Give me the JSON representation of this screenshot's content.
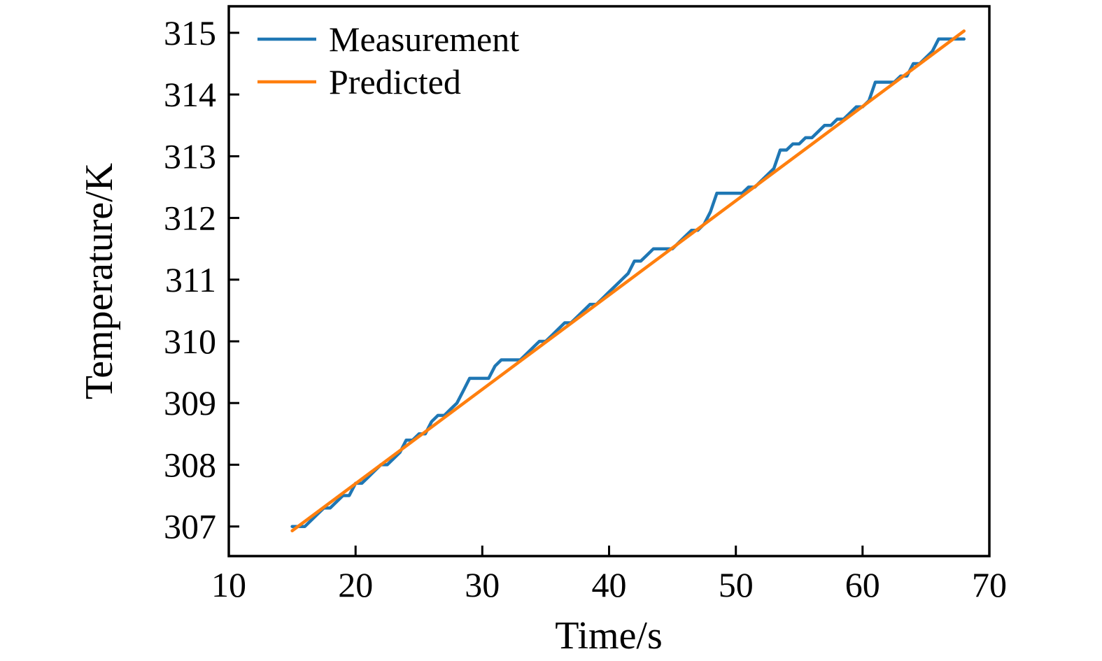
{
  "figure": {
    "background": "#ffffff",
    "axis_color": "#000000",
    "text_color": "#000000"
  },
  "chart_data": {
    "type": "line",
    "title": "",
    "xlabel": "Time/s",
    "ylabel": "Temperature/K",
    "xlim": [
      10,
      70
    ],
    "ylim": [
      306.52,
      315.43
    ],
    "xticks": [
      10,
      20,
      30,
      40,
      50,
      60,
      70
    ],
    "yticks": [
      307,
      308,
      309,
      310,
      311,
      312,
      313,
      314,
      315
    ],
    "grid": false,
    "legend": {
      "position": "upper-left",
      "frame": false
    },
    "series": [
      {
        "name": "Measurement",
        "color": "#1f77b4",
        "line_width": 4.5,
        "t_start": 15,
        "t_step": 0.5,
        "values": [
          307.0,
          307.0,
          307.0,
          307.1,
          307.2,
          307.3,
          307.3,
          307.4,
          307.5,
          307.5,
          307.7,
          307.7,
          307.8,
          307.9,
          308.0,
          308.0,
          308.1,
          308.2,
          308.4,
          308.4,
          308.5,
          308.5,
          308.7,
          308.8,
          308.8,
          308.9,
          309.0,
          309.2,
          309.4,
          309.4,
          309.4,
          309.4,
          309.6,
          309.7,
          309.7,
          309.7,
          309.7,
          309.8,
          309.9,
          310.0,
          310.0,
          310.1,
          310.2,
          310.3,
          310.3,
          310.4,
          310.5,
          310.6,
          310.6,
          310.7,
          310.8,
          310.9,
          311.0,
          311.1,
          311.3,
          311.3,
          311.4,
          311.5,
          311.5,
          311.5,
          311.5,
          311.6,
          311.7,
          311.8,
          311.8,
          311.9,
          312.1,
          312.4,
          312.4,
          312.4,
          312.4,
          312.4,
          312.5,
          312.5,
          312.6,
          312.7,
          312.8,
          313.1,
          313.1,
          313.2,
          313.2,
          313.3,
          313.3,
          313.4,
          313.5,
          313.5,
          313.6,
          313.6,
          313.7,
          313.8,
          313.8,
          313.9,
          314.2,
          314.2,
          314.2,
          314.2,
          314.3,
          314.3,
          314.5,
          314.5,
          314.6,
          314.7,
          314.9,
          314.9,
          314.9,
          314.9,
          314.9
        ]
      },
      {
        "name": "Predicted",
        "color": "#ff7f0e",
        "line_width": 4.5,
        "x": [
          15,
          68
        ],
        "values": [
          306.93,
          315.03
        ]
      }
    ]
  }
}
